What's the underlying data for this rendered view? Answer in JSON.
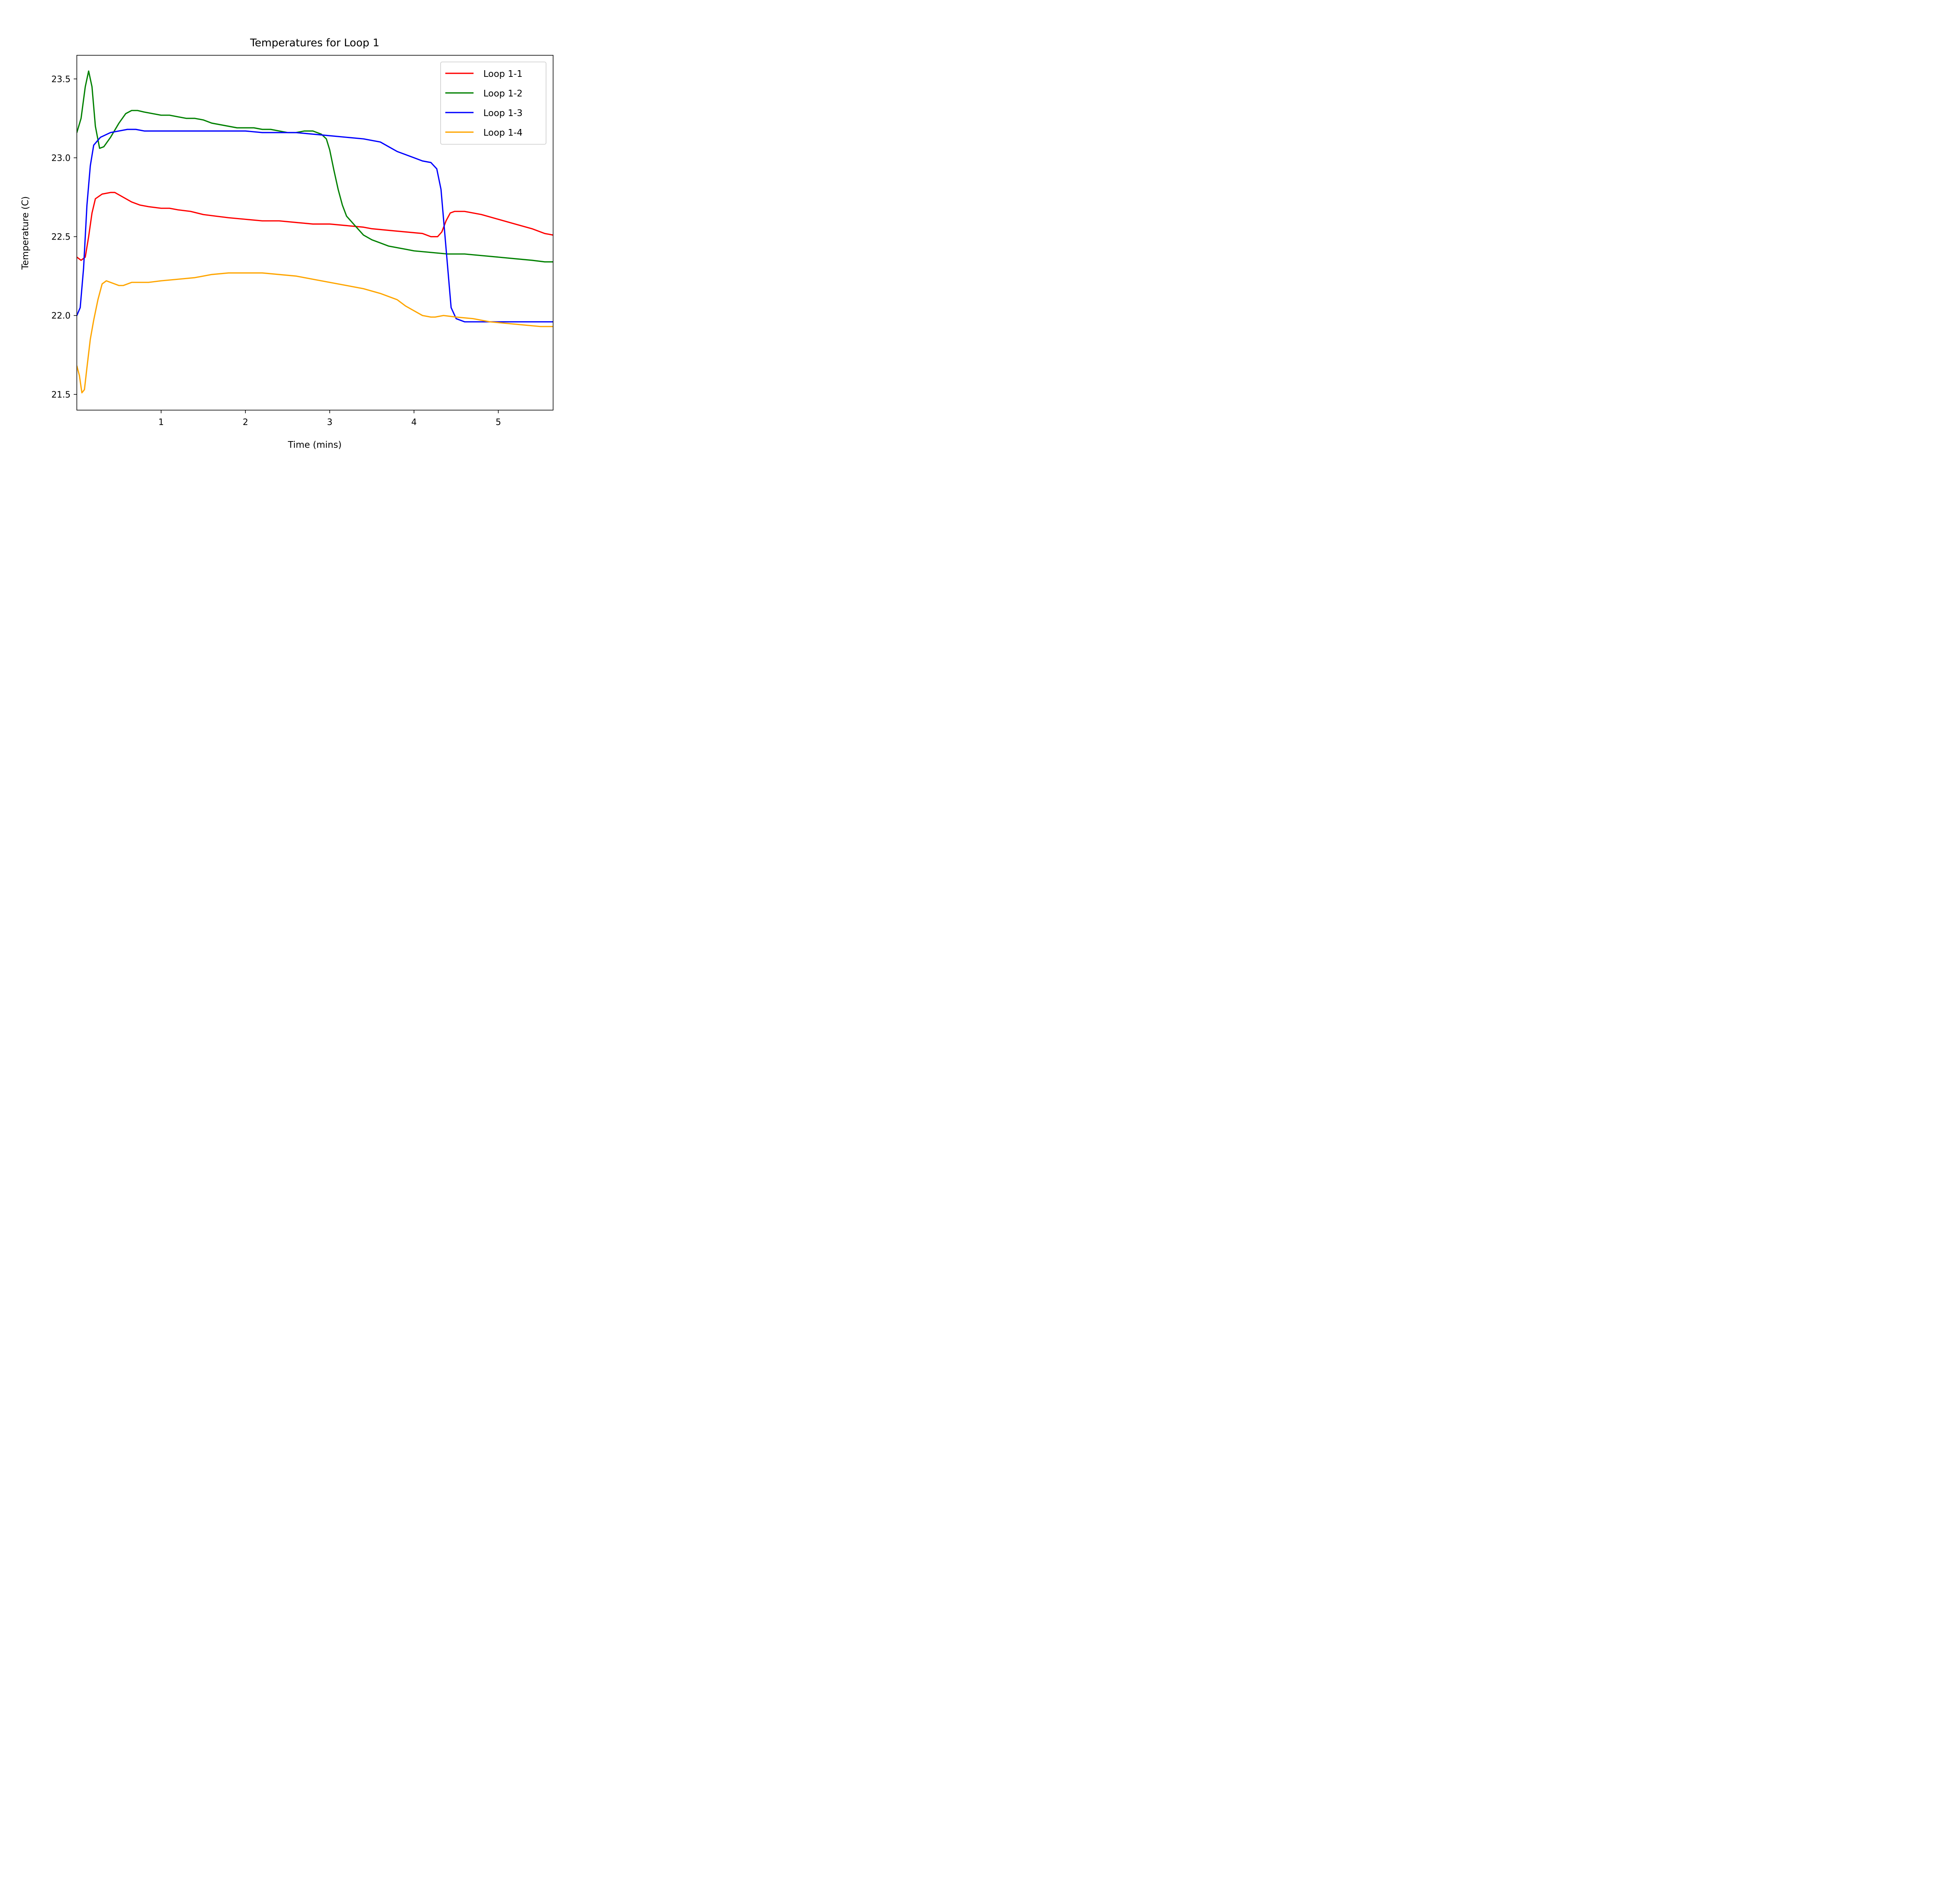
{
  "chart_data": {
    "type": "line",
    "title": "Temperatures for Loop 1",
    "xlabel": "Time (mins)",
    "ylabel": "Temperature (C)",
    "xlim": [
      0.0,
      5.65
    ],
    "ylim": [
      21.4,
      23.65
    ],
    "xticks": [
      1,
      2,
      3,
      4,
      5
    ],
    "xtick_labels": [
      "1",
      "2",
      "3",
      "4",
      "5"
    ],
    "yticks": [
      21.5,
      22.0,
      22.5,
      23.0,
      23.5
    ],
    "ytick_labels": [
      "21.5",
      "22.0",
      "22.5",
      "23.0",
      "23.5"
    ],
    "grid": false,
    "legend_position": "top-right",
    "series": [
      {
        "name": "Loop 1-1",
        "color": "#ff0000",
        "points": [
          [
            0.0,
            22.37
          ],
          [
            0.05,
            22.35
          ],
          [
            0.1,
            22.37
          ],
          [
            0.14,
            22.5
          ],
          [
            0.18,
            22.65
          ],
          [
            0.22,
            22.74
          ],
          [
            0.3,
            22.77
          ],
          [
            0.4,
            22.78
          ],
          [
            0.45,
            22.78
          ],
          [
            0.55,
            22.75
          ],
          [
            0.65,
            22.72
          ],
          [
            0.75,
            22.7
          ],
          [
            0.85,
            22.69
          ],
          [
            1.0,
            22.68
          ],
          [
            1.1,
            22.68
          ],
          [
            1.2,
            22.67
          ],
          [
            1.35,
            22.66
          ],
          [
            1.5,
            22.64
          ],
          [
            1.65,
            22.63
          ],
          [
            1.8,
            22.62
          ],
          [
            2.0,
            22.61
          ],
          [
            2.2,
            22.6
          ],
          [
            2.4,
            22.6
          ],
          [
            2.6,
            22.59
          ],
          [
            2.8,
            22.58
          ],
          [
            3.0,
            22.58
          ],
          [
            3.2,
            22.57
          ],
          [
            3.4,
            22.56
          ],
          [
            3.5,
            22.55
          ],
          [
            3.7,
            22.54
          ],
          [
            3.9,
            22.53
          ],
          [
            4.1,
            22.52
          ],
          [
            4.2,
            22.5
          ],
          [
            4.28,
            22.5
          ],
          [
            4.33,
            22.53
          ],
          [
            4.38,
            22.6
          ],
          [
            4.43,
            22.65
          ],
          [
            4.48,
            22.66
          ],
          [
            4.6,
            22.66
          ],
          [
            4.8,
            22.64
          ],
          [
            5.0,
            22.61
          ],
          [
            5.2,
            22.58
          ],
          [
            5.4,
            22.55
          ],
          [
            5.55,
            22.52
          ],
          [
            5.65,
            22.51
          ]
        ]
      },
      {
        "name": "Loop 1-2",
        "color": "#008000",
        "points": [
          [
            0.0,
            23.16
          ],
          [
            0.05,
            23.25
          ],
          [
            0.1,
            23.45
          ],
          [
            0.14,
            23.55
          ],
          [
            0.18,
            23.45
          ],
          [
            0.22,
            23.2
          ],
          [
            0.27,
            23.06
          ],
          [
            0.32,
            23.07
          ],
          [
            0.4,
            23.13
          ],
          [
            0.5,
            23.22
          ],
          [
            0.58,
            23.28
          ],
          [
            0.65,
            23.3
          ],
          [
            0.72,
            23.3
          ],
          [
            0.8,
            23.29
          ],
          [
            0.9,
            23.28
          ],
          [
            1.0,
            23.27
          ],
          [
            1.1,
            23.27
          ],
          [
            1.2,
            23.26
          ],
          [
            1.3,
            23.25
          ],
          [
            1.4,
            23.25
          ],
          [
            1.5,
            23.24
          ],
          [
            1.6,
            23.22
          ],
          [
            1.7,
            23.21
          ],
          [
            1.8,
            23.2
          ],
          [
            1.9,
            23.19
          ],
          [
            2.0,
            23.19
          ],
          [
            2.1,
            23.19
          ],
          [
            2.2,
            23.18
          ],
          [
            2.3,
            23.18
          ],
          [
            2.4,
            23.17
          ],
          [
            2.5,
            23.16
          ],
          [
            2.6,
            23.16
          ],
          [
            2.7,
            23.17
          ],
          [
            2.8,
            23.17
          ],
          [
            2.9,
            23.15
          ],
          [
            2.96,
            23.12
          ],
          [
            3.0,
            23.05
          ],
          [
            3.05,
            22.92
          ],
          [
            3.1,
            22.8
          ],
          [
            3.15,
            22.7
          ],
          [
            3.2,
            22.63
          ],
          [
            3.3,
            22.57
          ],
          [
            3.4,
            22.51
          ],
          [
            3.5,
            22.48
          ],
          [
            3.6,
            22.46
          ],
          [
            3.7,
            22.44
          ],
          [
            3.8,
            22.43
          ],
          [
            3.9,
            22.42
          ],
          [
            4.0,
            22.41
          ],
          [
            4.2,
            22.4
          ],
          [
            4.4,
            22.39
          ],
          [
            4.6,
            22.39
          ],
          [
            4.8,
            22.38
          ],
          [
            5.0,
            22.37
          ],
          [
            5.2,
            22.36
          ],
          [
            5.4,
            22.35
          ],
          [
            5.55,
            22.34
          ],
          [
            5.65,
            22.34
          ]
        ]
      },
      {
        "name": "Loop 1-3",
        "color": "#0000ff",
        "points": [
          [
            0.0,
            22.0
          ],
          [
            0.04,
            22.05
          ],
          [
            0.08,
            22.3
          ],
          [
            0.12,
            22.7
          ],
          [
            0.16,
            22.95
          ],
          [
            0.2,
            23.08
          ],
          [
            0.28,
            23.13
          ],
          [
            0.4,
            23.16
          ],
          [
            0.5,
            23.17
          ],
          [
            0.6,
            23.18
          ],
          [
            0.7,
            23.18
          ],
          [
            0.8,
            23.17
          ],
          [
            0.9,
            23.17
          ],
          [
            1.0,
            23.17
          ],
          [
            1.2,
            23.17
          ],
          [
            1.4,
            23.17
          ],
          [
            1.6,
            23.17
          ],
          [
            1.8,
            23.17
          ],
          [
            2.0,
            23.17
          ],
          [
            2.2,
            23.16
          ],
          [
            2.4,
            23.16
          ],
          [
            2.6,
            23.16
          ],
          [
            2.8,
            23.15
          ],
          [
            3.0,
            23.14
          ],
          [
            3.2,
            23.13
          ],
          [
            3.4,
            23.12
          ],
          [
            3.6,
            23.1
          ],
          [
            3.7,
            23.07
          ],
          [
            3.8,
            23.04
          ],
          [
            3.9,
            23.02
          ],
          [
            4.0,
            23.0
          ],
          [
            4.1,
            22.98
          ],
          [
            4.2,
            22.97
          ],
          [
            4.27,
            22.93
          ],
          [
            4.32,
            22.8
          ],
          [
            4.36,
            22.55
          ],
          [
            4.4,
            22.3
          ],
          [
            4.44,
            22.05
          ],
          [
            4.5,
            21.98
          ],
          [
            4.6,
            21.96
          ],
          [
            4.8,
            21.96
          ],
          [
            5.0,
            21.96
          ],
          [
            5.2,
            21.96
          ],
          [
            5.4,
            21.96
          ],
          [
            5.65,
            21.96
          ]
        ]
      },
      {
        "name": "Loop 1-4",
        "color": "#ffa500",
        "points": [
          [
            0.0,
            21.68
          ],
          [
            0.03,
            21.62
          ],
          [
            0.06,
            21.51
          ],
          [
            0.09,
            21.53
          ],
          [
            0.12,
            21.67
          ],
          [
            0.16,
            21.85
          ],
          [
            0.2,
            21.97
          ],
          [
            0.25,
            22.1
          ],
          [
            0.3,
            22.2
          ],
          [
            0.35,
            22.22
          ],
          [
            0.4,
            22.21
          ],
          [
            0.45,
            22.2
          ],
          [
            0.5,
            22.19
          ],
          [
            0.55,
            22.19
          ],
          [
            0.65,
            22.21
          ],
          [
            0.75,
            22.21
          ],
          [
            0.85,
            22.21
          ],
          [
            1.0,
            22.22
          ],
          [
            1.2,
            22.23
          ],
          [
            1.4,
            22.24
          ],
          [
            1.6,
            22.26
          ],
          [
            1.8,
            22.27
          ],
          [
            2.0,
            22.27
          ],
          [
            2.2,
            22.27
          ],
          [
            2.4,
            22.26
          ],
          [
            2.6,
            22.25
          ],
          [
            2.8,
            22.23
          ],
          [
            3.0,
            22.21
          ],
          [
            3.2,
            22.19
          ],
          [
            3.4,
            22.17
          ],
          [
            3.6,
            22.14
          ],
          [
            3.8,
            22.1
          ],
          [
            3.9,
            22.06
          ],
          [
            4.0,
            22.03
          ],
          [
            4.1,
            22.0
          ],
          [
            4.2,
            21.99
          ],
          [
            4.25,
            21.99
          ],
          [
            4.35,
            22.0
          ],
          [
            4.5,
            21.99
          ],
          [
            4.7,
            21.98
          ],
          [
            4.9,
            21.96
          ],
          [
            5.1,
            21.95
          ],
          [
            5.3,
            21.94
          ],
          [
            5.5,
            21.93
          ],
          [
            5.65,
            21.93
          ]
        ]
      }
    ]
  }
}
